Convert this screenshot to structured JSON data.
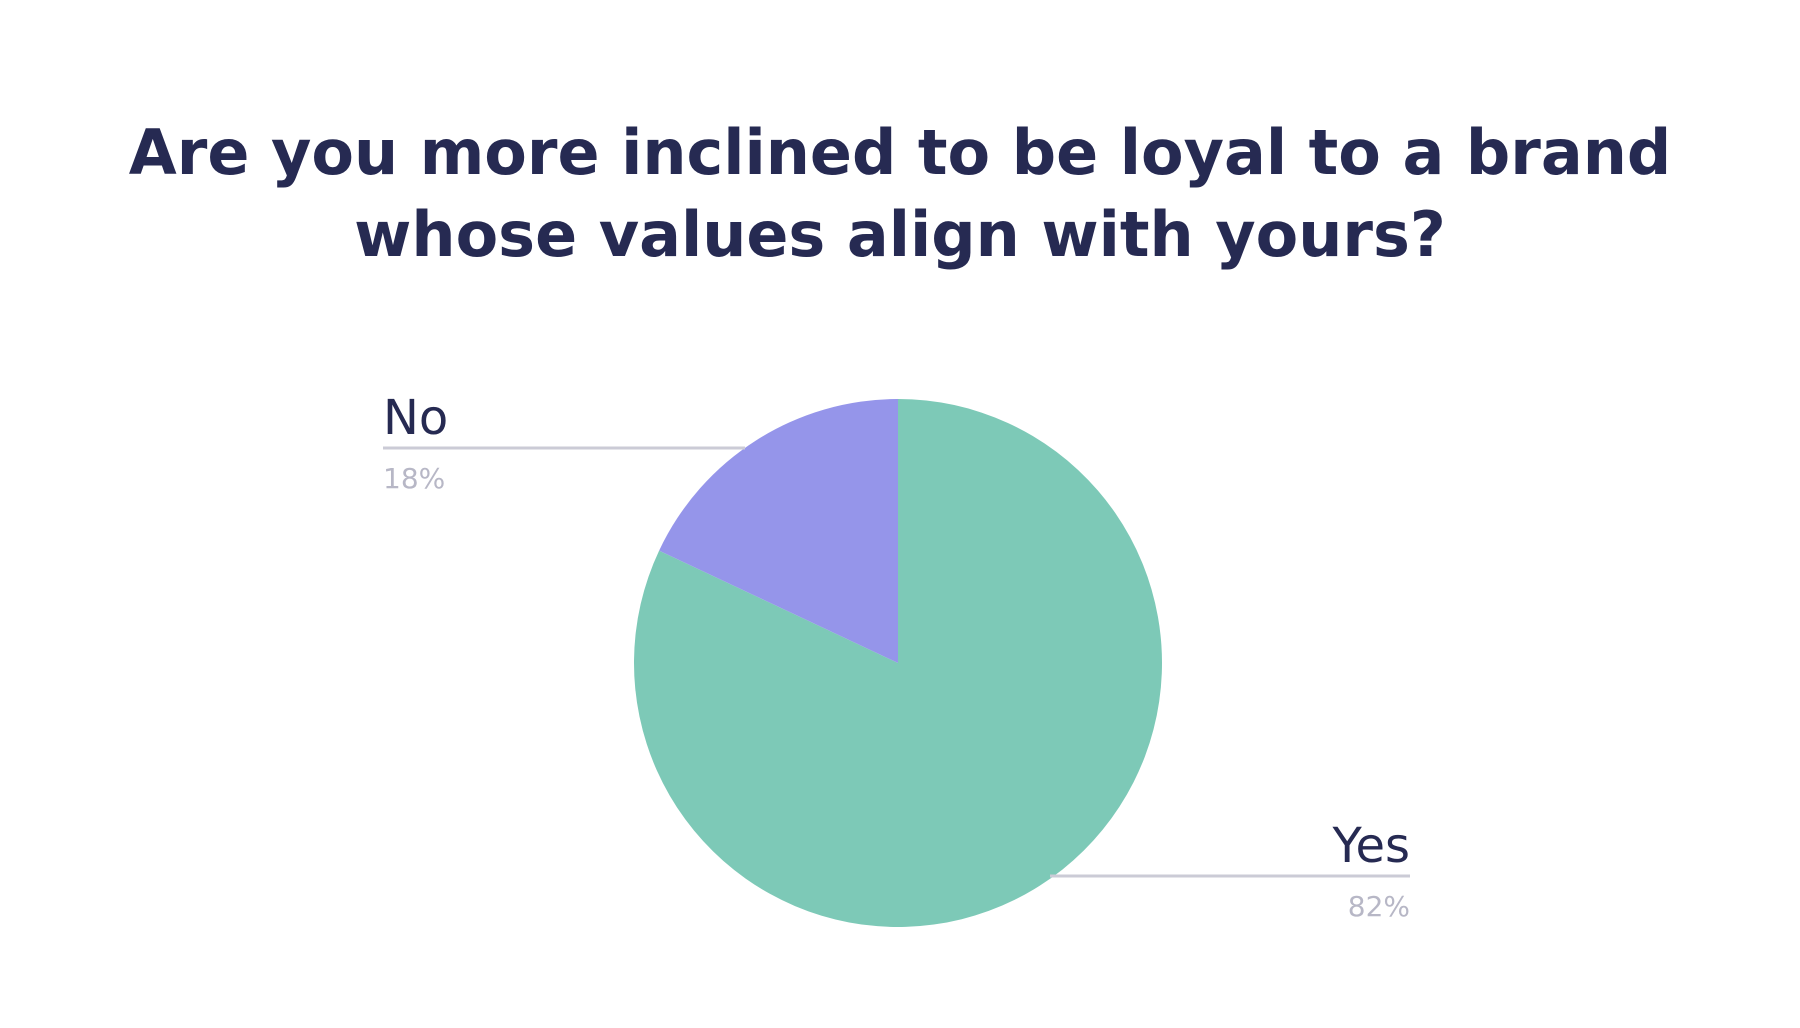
{
  "chart_data": {
    "type": "pie",
    "title_lines": [
      "Are you more inclined to be loyal to a brand",
      "whose values align with yours?"
    ],
    "slices": [
      {
        "label": "Yes",
        "value": 82,
        "value_label": "82%",
        "color": "#7dc9b7",
        "callout_side": "bottom-right"
      },
      {
        "label": "No",
        "value": 18,
        "value_label": "18%",
        "color": "#9595ea",
        "callout_side": "top-left"
      }
    ],
    "leader_line_color": "#cbcbd6",
    "title_color": "#262a52"
  }
}
